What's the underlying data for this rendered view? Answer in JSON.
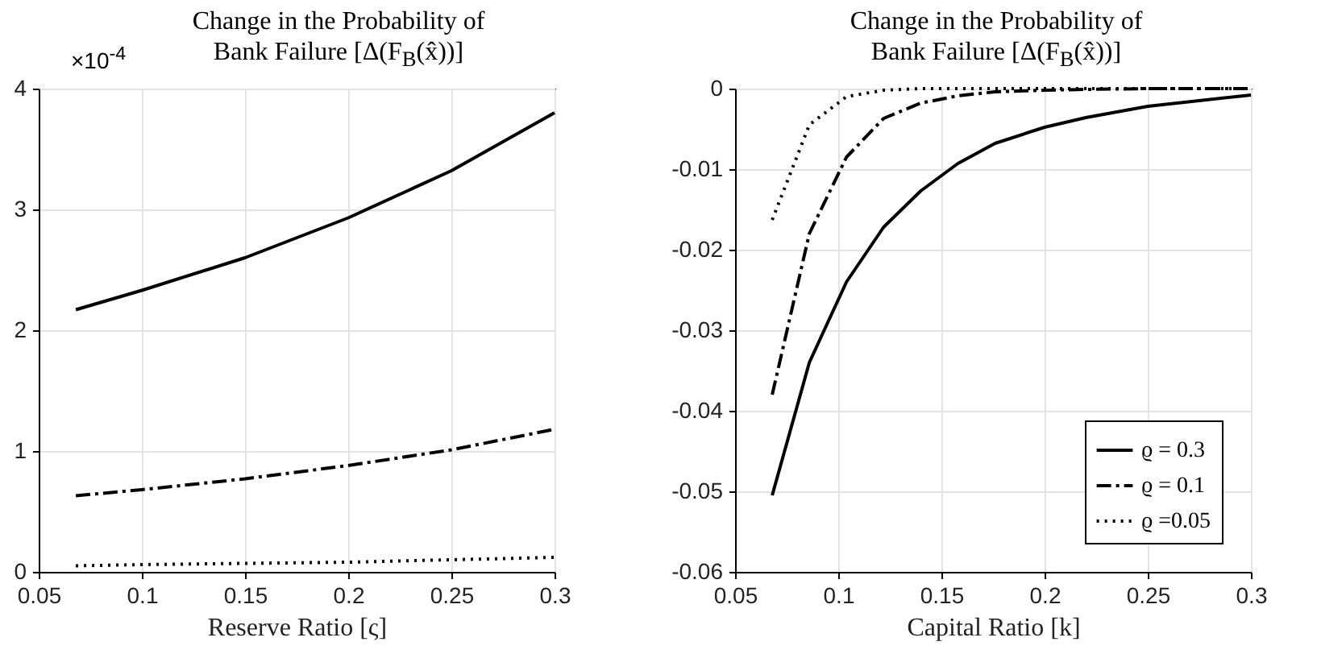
{
  "chart_data": [
    {
      "type": "line",
      "title": "Change in the Probability of\nBank Failure [Δ(F$_{B}$(x̂))]",
      "xlabel": "Reserve Ratio [ς]",
      "annotations": [
        "×10$^{-4}$"
      ],
      "xlim": [
        0.05,
        0.3
      ],
      "xticks": [
        0.05,
        0.1,
        0.15,
        0.2,
        0.25,
        0.3
      ],
      "ylim": [
        0,
        4
      ],
      "yticks": [
        0,
        1,
        2,
        3,
        4
      ],
      "grid": true,
      "x": [
        0.068,
        0.1,
        0.15,
        0.2,
        0.25,
        0.3
      ],
      "series": [
        {
          "color": "#000000",
          "line_style": "solid",
          "values": [
            2.17,
            2.33,
            2.6,
            2.93,
            3.32,
            3.8
          ]
        },
        {
          "color": "#000000",
          "line_style": "dashdot",
          "values": [
            0.63,
            0.68,
            0.77,
            0.88,
            1.01,
            1.18
          ]
        },
        {
          "color": "#000000",
          "line_style": "dotted",
          "values": [
            0.05,
            0.06,
            0.07,
            0.08,
            0.1,
            0.12
          ]
        }
      ]
    },
    {
      "type": "line",
      "title": "Change in the Probability of\nBank Failure [Δ(F$_{B}$(x̂))]",
      "xlabel": "Capital Ratio [k]",
      "xlim": [
        0.05,
        0.3
      ],
      "xticks": [
        0.05,
        0.1,
        0.15,
        0.2,
        0.25,
        0.3
      ],
      "ylim": [
        -0.06,
        0
      ],
      "yticks": [
        -0.06,
        -0.05,
        -0.04,
        -0.03,
        -0.02,
        -0.01,
        0
      ],
      "grid": true,
      "legend": "bottom right",
      "x": [
        0.068,
        0.086,
        0.104,
        0.122,
        0.14,
        0.158,
        0.176,
        0.2,
        0.22,
        0.25,
        0.3
      ],
      "series": [
        {
          "name": "ϱ = 0.3",
          "color": "#000000",
          "line_style": "solid",
          "values": [
            -0.0505,
            -0.034,
            -0.024,
            -0.0172,
            -0.0127,
            -0.0093,
            -0.0068,
            -0.0048,
            -0.0036,
            -0.0022,
            -0.0008
          ]
        },
        {
          "name": "ϱ = 0.1",
          "color": "#000000",
          "line_style": "dashdot",
          "values": [
            -0.038,
            -0.018,
            -0.0085,
            -0.0037,
            -0.0018,
            -0.0009,
            -0.0004,
            -0.0002,
            -0.0001,
            0,
            0
          ]
        },
        {
          "name": "ϱ =0.05",
          "color": "#000000",
          "line_style": "dotted",
          "values": [
            -0.0163,
            -0.0045,
            -0.001,
            -0.0002,
            0,
            0,
            0,
            0,
            0,
            0,
            0
          ]
        }
      ]
    }
  ]
}
